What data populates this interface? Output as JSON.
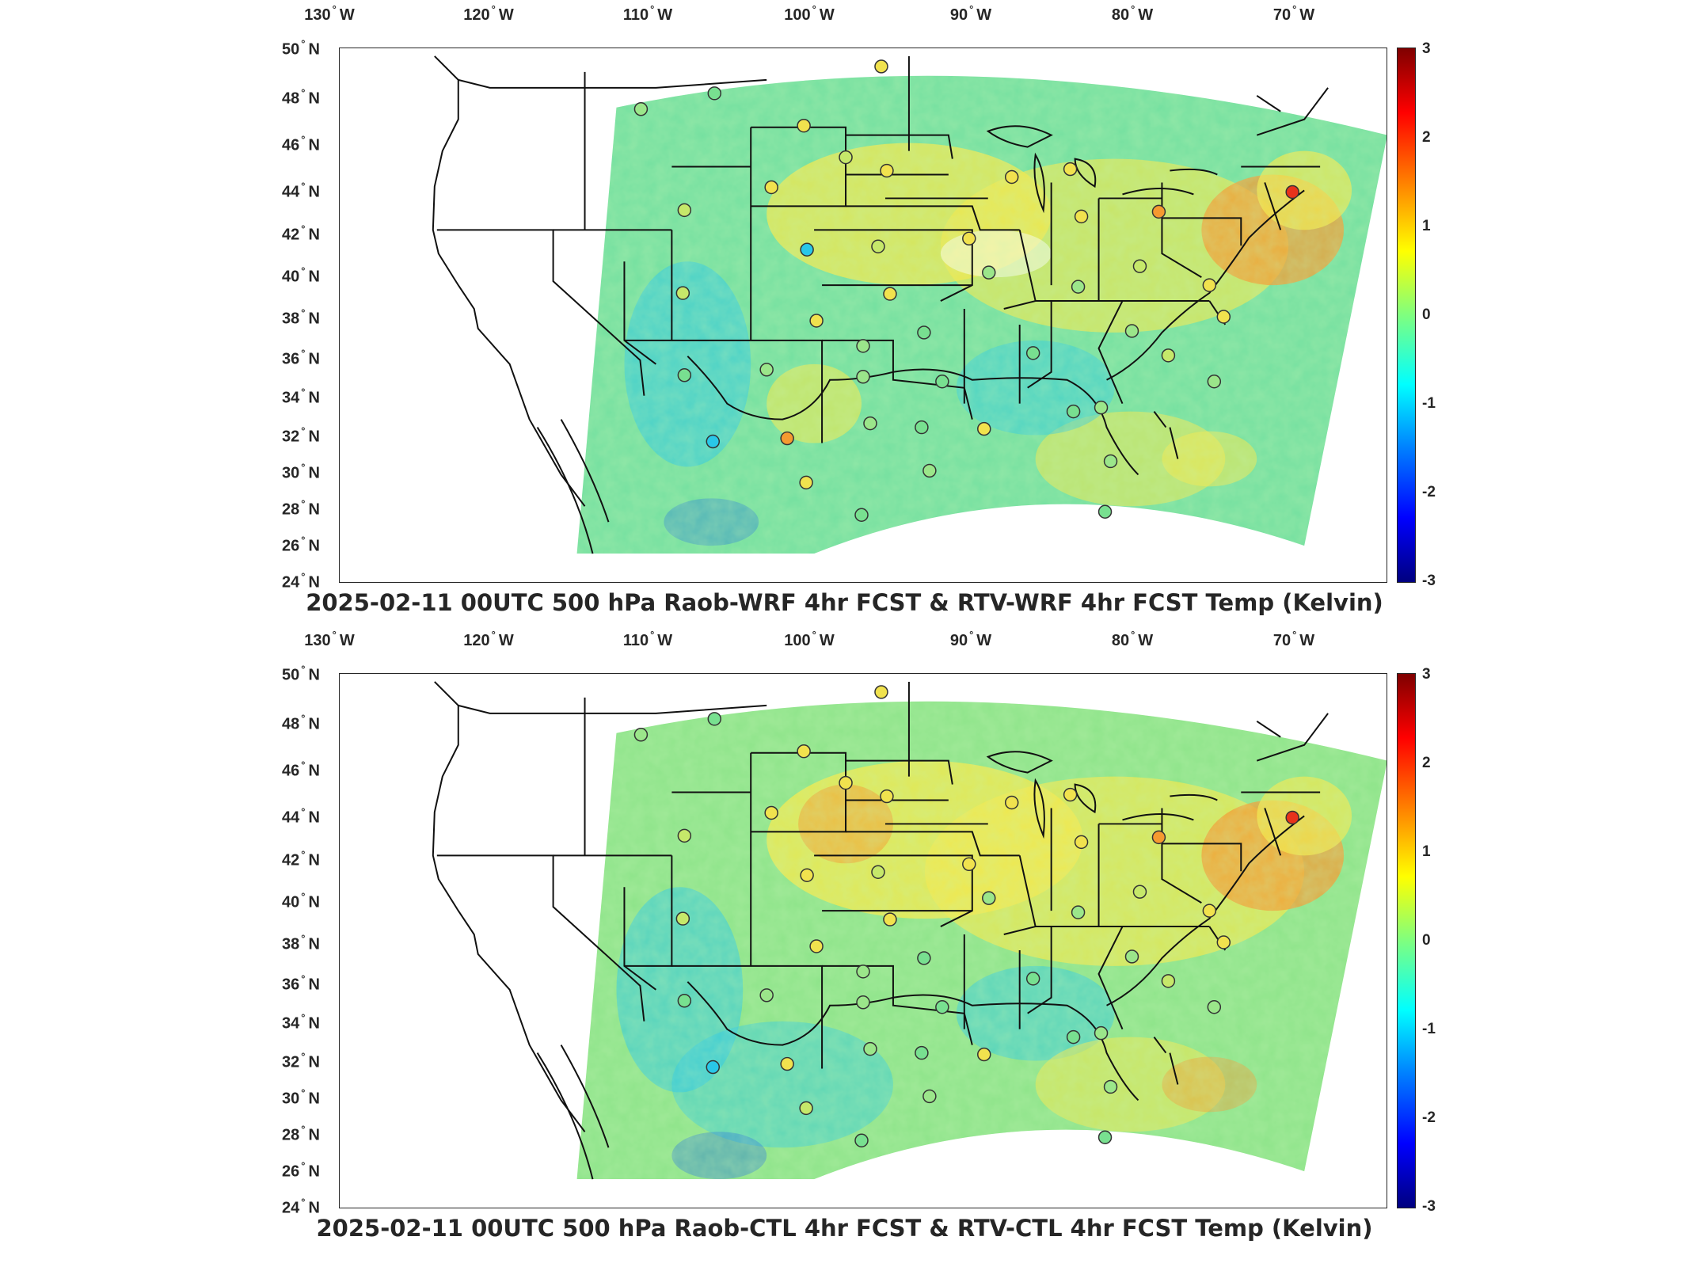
{
  "panels": [
    {
      "id": "top",
      "title": "2025-02-11 00UTC 500 hPa Raob-WRF 4hr FCST & RTV-WRF 4hr FCST Temp (Kelvin)"
    },
    {
      "id": "bottom",
      "title": "2025-02-11 00UTC 500 hPa Raob-CTL 4hr FCST & RTV-CTL 4hr FCST Temp (Kelvin)"
    }
  ],
  "lon_ticks": [
    {
      "value": "130",
      "hemi": "W"
    },
    {
      "value": "120",
      "hemi": "W"
    },
    {
      "value": "110",
      "hemi": "W"
    },
    {
      "value": "100",
      "hemi": "W"
    },
    {
      "value": "90",
      "hemi": "W"
    },
    {
      "value": "80",
      "hemi": "W"
    },
    {
      "value": "70",
      "hemi": "W"
    }
  ],
  "lat_ticks": [
    {
      "value": "50",
      "hemi": "N"
    },
    {
      "value": "48",
      "hemi": "N"
    },
    {
      "value": "46",
      "hemi": "N"
    },
    {
      "value": "44",
      "hemi": "N"
    },
    {
      "value": "42",
      "hemi": "N"
    },
    {
      "value": "40",
      "hemi": "N"
    },
    {
      "value": "38",
      "hemi": "N"
    },
    {
      "value": "36",
      "hemi": "N"
    },
    {
      "value": "34",
      "hemi": "N"
    },
    {
      "value": "32",
      "hemi": "N"
    },
    {
      "value": "30",
      "hemi": "N"
    },
    {
      "value": "28",
      "hemi": "N"
    },
    {
      "value": "26",
      "hemi": "N"
    },
    {
      "value": "24",
      "hemi": "N"
    }
  ],
  "colorbar": {
    "ticks": [
      "3",
      "2",
      "1",
      "0",
      "-1",
      "-2",
      "-3"
    ],
    "range": [
      -3,
      3
    ],
    "colormap": "jet"
  },
  "map": {
    "projection": "lambert-conformal-like",
    "lon_range_deg": [
      -131,
      -63
    ],
    "lat_range_deg": [
      24,
      50
    ],
    "grid": false,
    "field_colors": {
      "background_field": "#74e0a0",
      "warm_anomaly": "#f5e84a",
      "strong_warm": "#f59a30",
      "cold_anomaly": "#29c7e8",
      "strong_cold": "#1f6fe0"
    },
    "raob_markers": "circles (colored by station difference)"
  }
}
